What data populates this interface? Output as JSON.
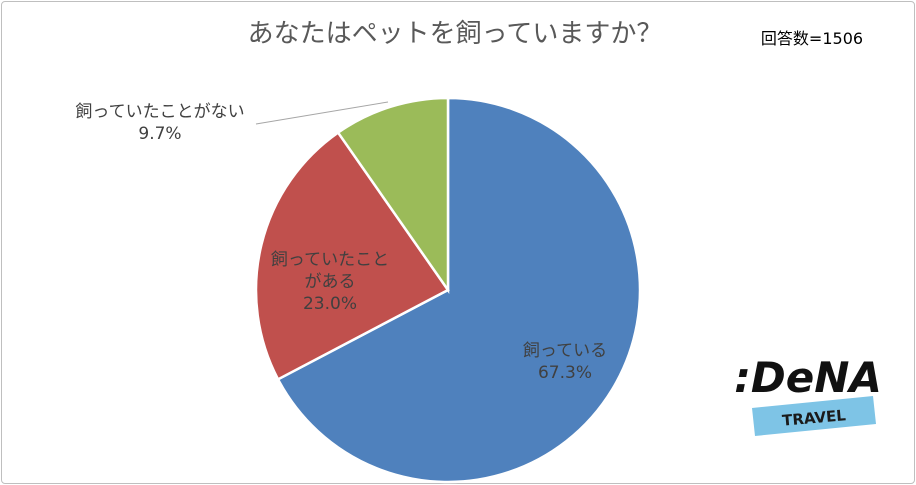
{
  "chart_data": {
    "type": "pie",
    "title": "あなたはペットを飼っていますか？",
    "note": "回答数=1506",
    "categories": [
      "飼っている",
      "飼っていたことがある",
      "飼っていたことがない"
    ],
    "values": [
      67.3,
      23.0,
      9.7
    ],
    "value_labels": [
      "67.3%",
      "23.0%",
      "9.7%"
    ],
    "colors": [
      "#4f81bd",
      "#c0504d",
      "#9bbb59"
    ],
    "logo": {
      "name": ":DeNA",
      "sub": "TRAVEL"
    }
  }
}
